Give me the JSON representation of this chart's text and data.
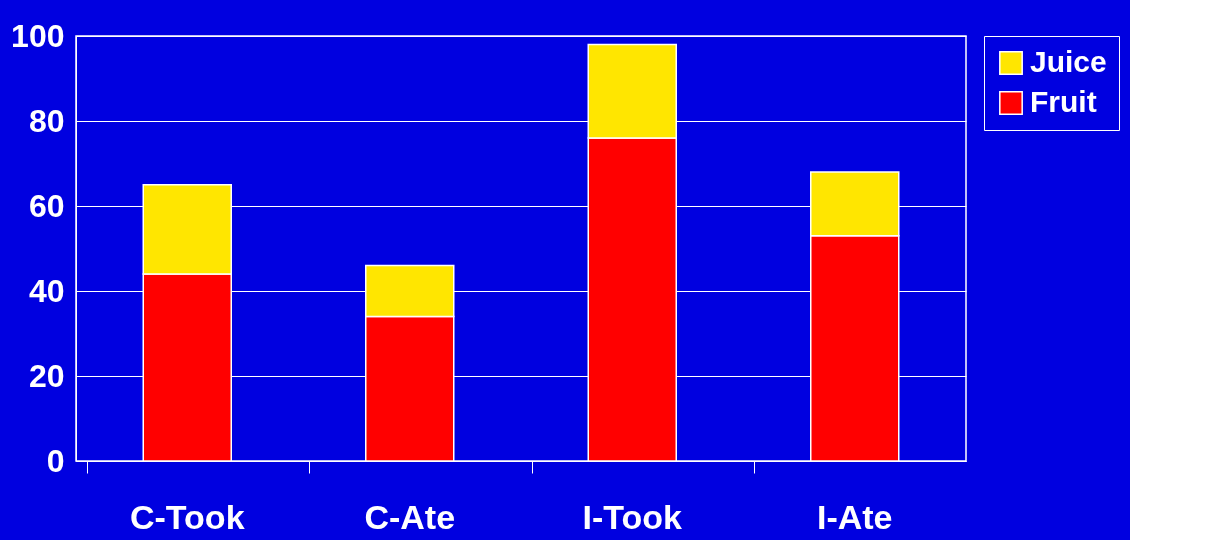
{
  "chart_data": {
    "type": "bar",
    "stacked": true,
    "categories": [
      "C-Took",
      "C-Ate",
      "I-Took",
      "I-Ate"
    ],
    "series": [
      {
        "name": "Fruit",
        "color": "#ff0000",
        "values": [
          44,
          34,
          76,
          53
        ]
      },
      {
        "name": "Juice",
        "color": "#ffe600",
        "values": [
          21,
          12,
          22,
          15
        ]
      }
    ],
    "ylim": [
      0,
      100
    ],
    "yticks": [
      0,
      20,
      40,
      60,
      80,
      100
    ],
    "grid": "y",
    "legend": "right"
  }
}
